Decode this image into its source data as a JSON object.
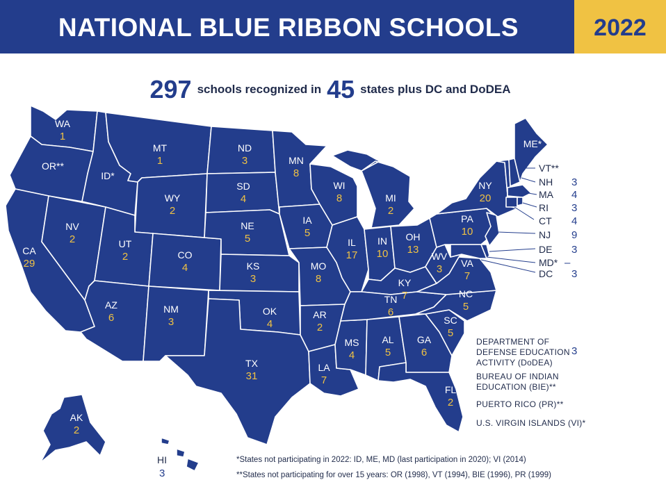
{
  "header": {
    "title": "NATIONAL BLUE RIBBON SCHOOLS",
    "year": "2022"
  },
  "summary": {
    "schools": "297",
    "text1": "schools recognized in",
    "states": "45",
    "text2": "states plus DC and DoDEA"
  },
  "states": [
    {
      "code": "WA",
      "value": "1"
    },
    {
      "code": "OR**",
      "value": ""
    },
    {
      "code": "CA",
      "value": "29"
    },
    {
      "code": "NV",
      "value": "2"
    },
    {
      "code": "ID*",
      "value": ""
    },
    {
      "code": "MT",
      "value": "1"
    },
    {
      "code": "WY",
      "value": "2"
    },
    {
      "code": "UT",
      "value": "2"
    },
    {
      "code": "CO",
      "value": "4"
    },
    {
      "code": "AZ",
      "value": "6"
    },
    {
      "code": "NM",
      "value": "3"
    },
    {
      "code": "ND",
      "value": "3"
    },
    {
      "code": "SD",
      "value": "4"
    },
    {
      "code": "NE",
      "value": "5"
    },
    {
      "code": "KS",
      "value": "3"
    },
    {
      "code": "OK",
      "value": "4"
    },
    {
      "code": "TX",
      "value": "31"
    },
    {
      "code": "MN",
      "value": "8"
    },
    {
      "code": "IA",
      "value": "5"
    },
    {
      "code": "MO",
      "value": "8"
    },
    {
      "code": "AR",
      "value": "2"
    },
    {
      "code": "LA",
      "value": "7"
    },
    {
      "code": "WI",
      "value": "8"
    },
    {
      "code": "IL",
      "value": "17"
    },
    {
      "code": "MS",
      "value": "4"
    },
    {
      "code": "MI",
      "value": "2"
    },
    {
      "code": "IN",
      "value": "10"
    },
    {
      "code": "OH",
      "value": "13"
    },
    {
      "code": "KY",
      "value": "7"
    },
    {
      "code": "TN",
      "value": "6"
    },
    {
      "code": "AL",
      "value": "5"
    },
    {
      "code": "GA",
      "value": "6"
    },
    {
      "code": "FL",
      "value": "2"
    },
    {
      "code": "SC",
      "value": "5"
    },
    {
      "code": "NC",
      "value": "5"
    },
    {
      "code": "VA",
      "value": "7"
    },
    {
      "code": "WV",
      "value": "3"
    },
    {
      "code": "PA",
      "value": "10"
    },
    {
      "code": "NY",
      "value": "20"
    },
    {
      "code": "ME*",
      "value": ""
    },
    {
      "code": "AK",
      "value": "2"
    }
  ],
  "northeast": [
    {
      "code": "VT**",
      "value": ""
    },
    {
      "code": "NH",
      "value": "3"
    },
    {
      "code": "MA",
      "value": "4"
    },
    {
      "code": "RI",
      "value": "3"
    },
    {
      "code": "CT",
      "value": "4"
    },
    {
      "code": "NJ",
      "value": "9"
    },
    {
      "code": "DE",
      "value": "3"
    },
    {
      "code": "MD*",
      "value": "–"
    },
    {
      "code": "DC",
      "value": "3"
    }
  ],
  "hawaii": {
    "code": "HI",
    "value": "3"
  },
  "other": [
    {
      "line1": "DEPARTMENT OF",
      "line2": "DEFENSE EDUCATION",
      "line3": "ACTIVITY (DoDEA)",
      "value": "3"
    },
    {
      "line1": "BUREAU OF INDIAN",
      "line2": "EDUCATION (BIE)**",
      "line3": "",
      "value": ""
    },
    {
      "line1": "PUERTO RICO (PR)**",
      "line2": "",
      "line3": "",
      "value": ""
    },
    {
      "line1": "U.S. VIRGIN ISLANDS (VI)*",
      "line2": "",
      "line3": "",
      "value": ""
    }
  ],
  "footnotes": {
    "one": "*States not participating in 2022: ID, ME, MD (last participation in 2020); VI (2014)",
    "two": "**States not participating for over 15 years: OR (1998), VT (1994), BIE (1996), PR (1999)"
  },
  "colors": {
    "navy": "#233d8c",
    "gold": "#f0c243",
    "white": "#ffffff"
  }
}
